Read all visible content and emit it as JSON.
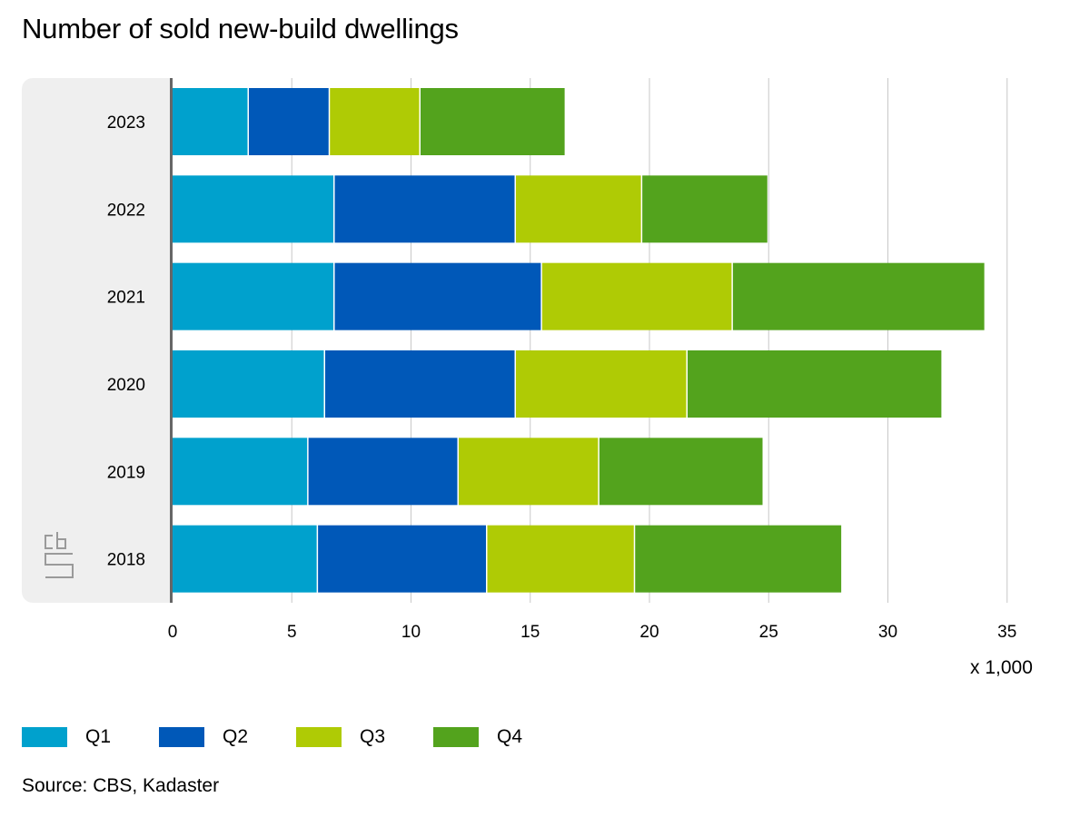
{
  "chart_data": {
    "type": "bar",
    "orientation": "horizontal",
    "stacked": true,
    "title": "Number of sold new-build dwellings",
    "categories": [
      "2023",
      "2022",
      "2021",
      "2020",
      "2019",
      "2018"
    ],
    "series": [
      {
        "name": "Q1",
        "color": "#00a1cd",
        "values": [
          3.2,
          6.8,
          6.8,
          6.4,
          5.7,
          6.1
        ]
      },
      {
        "name": "Q2",
        "color": "#0058b8",
        "values": [
          3.4,
          7.6,
          8.7,
          8.0,
          6.3,
          7.1
        ]
      },
      {
        "name": "Q3",
        "color": "#afcb05",
        "values": [
          3.8,
          5.3,
          8.0,
          7.2,
          5.9,
          6.2
        ]
      },
      {
        "name": "Q4",
        "color": "#53a31d",
        "values": [
          6.1,
          5.3,
          10.6,
          10.7,
          6.9,
          8.7
        ]
      }
    ],
    "xlim": [
      0,
      35
    ],
    "x_ticks": [
      "0",
      "5",
      "10",
      "15",
      "20",
      "25",
      "30",
      "35"
    ],
    "x_unit_label": "x 1,000",
    "grid": "vertical",
    "legend_position": "bottom-left",
    "source": "Source: CBS, Kadaster"
  },
  "logo": {
    "icon": "cbs-logo-icon",
    "text": "cbs"
  }
}
